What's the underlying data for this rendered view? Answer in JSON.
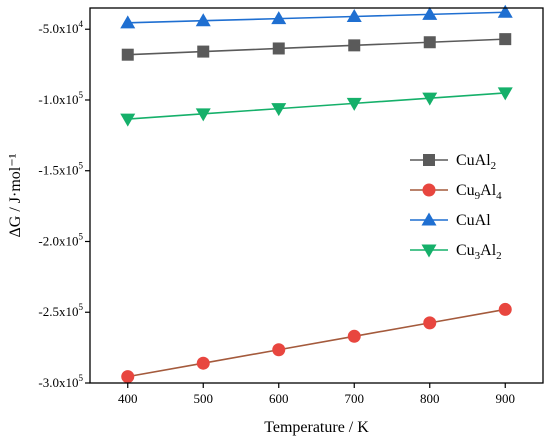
{
  "chart_data": {
    "type": "line",
    "xlabel": "Temperature / K",
    "ylabel": "ΔG / J·mol⁻¹",
    "xlim": [
      350,
      950
    ],
    "ylim": [
      -300000,
      -35000
    ],
    "grid": false,
    "legend_position": "right",
    "x": [
      400,
      500,
      600,
      700,
      800,
      900
    ],
    "x_ticks": [
      "400",
      "500",
      "600",
      "700",
      "800",
      "900"
    ],
    "y_ticks": [
      {
        "value": -50000,
        "mantissa": "-5.0x10",
        "exp": "4"
      },
      {
        "value": -100000,
        "mantissa": "-1.0x10",
        "exp": "5"
      },
      {
        "value": -150000,
        "mantissa": "-1.5x10",
        "exp": "5"
      },
      {
        "value": -200000,
        "mantissa": "-2.0x10",
        "exp": "5"
      },
      {
        "value": -250000,
        "mantissa": "-2.5x10",
        "exp": "5"
      },
      {
        "value": -300000,
        "mantissa": "-3.0x10",
        "exp": "5"
      }
    ],
    "series": [
      {
        "name": "CuAl2",
        "legend_parts": [
          {
            "t": "CuAl",
            "sub": false
          },
          {
            "t": "2",
            "sub": true
          }
        ],
        "color": "#5a5a5a",
        "line_color": "#5a5a5a",
        "marker": "square",
        "values": [
          -68000,
          -65800,
          -63600,
          -61400,
          -59200,
          -57000
        ]
      },
      {
        "name": "Cu9Al4",
        "legend_parts": [
          {
            "t": "Cu",
            "sub": false
          },
          {
            "t": "9",
            "sub": true
          },
          {
            "t": "Al",
            "sub": false
          },
          {
            "t": "4",
            "sub": true
          }
        ],
        "color": "#e8463f",
        "line_color": "#a45a3c",
        "marker": "circle",
        "values": [
          -295500,
          -286000,
          -276500,
          -267000,
          -257500,
          -248000
        ]
      },
      {
        "name": "CuAl",
        "legend_parts": [
          {
            "t": "CuAl",
            "sub": false
          }
        ],
        "color": "#1f6fd1",
        "line_color": "#1f6fd1",
        "marker": "triangle-up",
        "values": [
          -45500,
          -44000,
          -42500,
          -41000,
          -39500,
          -38000
        ]
      },
      {
        "name": "Cu3Al2",
        "legend_parts": [
          {
            "t": "Cu",
            "sub": false
          },
          {
            "t": "3",
            "sub": true
          },
          {
            "t": "Al",
            "sub": false
          },
          {
            "t": "2",
            "sub": true
          }
        ],
        "color": "#15b06a",
        "line_color": "#15b06a",
        "marker": "triangle-down",
        "values": [
          -113500,
          -109800,
          -106100,
          -102400,
          -98700,
          -95000
        ]
      }
    ]
  }
}
